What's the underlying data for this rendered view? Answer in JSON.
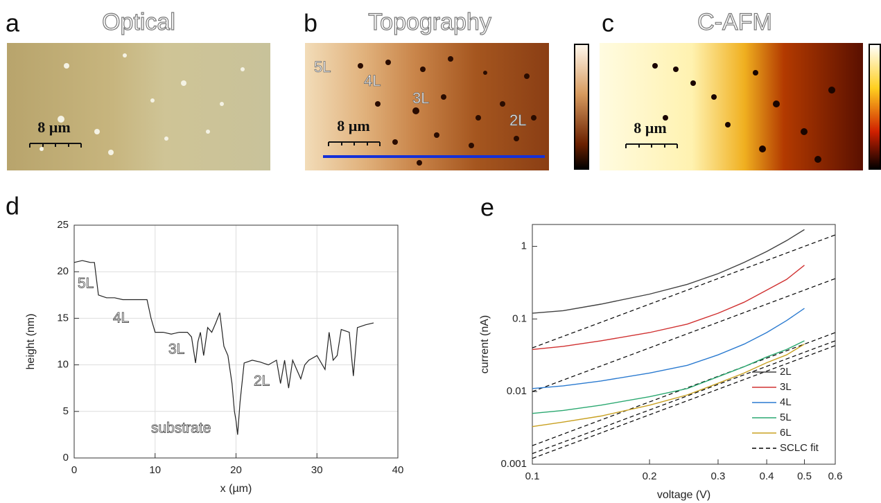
{
  "figure": {
    "panels": [
      {
        "label": "a",
        "title": "Optical",
        "scale_bar": "8 µm"
      },
      {
        "label": "b",
        "title": "Topography",
        "scale_bar": "8 µm",
        "layers": [
          "5L",
          "4L",
          "3L",
          "2L"
        ]
      },
      {
        "label": "c",
        "title": "C-AFM",
        "scale_bar": "8 µm"
      }
    ]
  },
  "chart_data": [
    {
      "type": "line",
      "panel_label": "d",
      "xlabel": "x (µm)",
      "ylabel": "height (nm)",
      "x": [
        0,
        1,
        2,
        2.5,
        3,
        4,
        5,
        6,
        7,
        8,
        9,
        9.5,
        10,
        11,
        12,
        13,
        14,
        14.5,
        15,
        15.3,
        15.6,
        16,
        16.5,
        17,
        17.5,
        18,
        18.5,
        19,
        19.5,
        19.8,
        20,
        20.2,
        20.5,
        21,
        22,
        23,
        24,
        25,
        25.5,
        26,
        26.5,
        27,
        28,
        28.5,
        29,
        30,
        31,
        31.5,
        32,
        32.5,
        33,
        34,
        34.5,
        35,
        36,
        37
      ],
      "values": [
        21,
        21.2,
        21,
        21,
        17.5,
        17.2,
        17.2,
        17,
        17,
        17,
        17,
        15,
        13.5,
        13.5,
        13.3,
        13.5,
        13.5,
        13,
        10.2,
        12.5,
        13.5,
        11,
        14,
        13.5,
        14.5,
        15.6,
        12,
        11,
        8,
        5,
        4,
        2.5,
        6,
        10.2,
        10.5,
        10.3,
        10,
        10.5,
        8,
        10.5,
        7.5,
        10.5,
        8.5,
        10,
        10.5,
        11,
        9.5,
        13.5,
        10.5,
        11,
        13.8,
        13.5,
        8.8,
        14,
        14.3,
        14.5
      ],
      "color": "#222222",
      "xlim": [
        0,
        40
      ],
      "ylim": [
        0,
        25
      ],
      "xticks": [
        0,
        10,
        20,
        30,
        40
      ],
      "yticks": [
        0,
        5,
        10,
        15,
        20,
        25
      ],
      "grid": true,
      "annotations": [
        "5L",
        "4L",
        "3L",
        "substrate",
        "2L"
      ]
    },
    {
      "type": "line",
      "log_x": true,
      "log_y": true,
      "panel_label": "e",
      "xlabel": "voltage (V)",
      "ylabel": "current (nA)",
      "x": [
        0.1,
        0.12,
        0.15,
        0.2,
        0.25,
        0.3,
        0.35,
        0.4,
        0.45,
        0.5
      ],
      "series": [
        {
          "name": "2L",
          "color": "#404040",
          "values": [
            0.12,
            0.13,
            0.16,
            0.22,
            0.3,
            0.42,
            0.6,
            0.85,
            1.2,
            1.7
          ]
        },
        {
          "name": "3L",
          "color": "#d03030",
          "values": [
            0.038,
            0.042,
            0.05,
            0.065,
            0.085,
            0.12,
            0.17,
            0.25,
            0.35,
            0.55
          ]
        },
        {
          "name": "4L",
          "color": "#2a7ad0",
          "values": [
            0.011,
            0.012,
            0.014,
            0.018,
            0.023,
            0.032,
            0.045,
            0.065,
            0.095,
            0.14
          ]
        },
        {
          "name": "5L",
          "color": "#2aa870",
          "values": [
            0.005,
            0.0055,
            0.0065,
            0.0085,
            0.011,
            0.016,
            0.022,
            0.03,
            0.038,
            0.05
          ]
        },
        {
          "name": "6L",
          "color": "#c8a020",
          "values": [
            0.0033,
            0.0038,
            0.0046,
            0.0065,
            0.009,
            0.013,
            0.018,
            0.025,
            0.032,
            0.045
          ]
        }
      ],
      "fit": {
        "name": "SCLC fit",
        "color": "#000000",
        "x": [
          0.1,
          0.6
        ],
        "lines": [
          [
            0.04,
            1.44
          ],
          [
            0.01,
            0.36
          ],
          [
            0.0018,
            0.065
          ],
          [
            0.0014,
            0.05
          ],
          [
            0.0012,
            0.043
          ]
        ]
      },
      "xlim": [
        0.1,
        0.6
      ],
      "ylim": [
        0.001,
        2
      ],
      "xticks": [
        0.1,
        0.2,
        0.3,
        0.4,
        0.5,
        0.6
      ],
      "yticks": [
        0.001,
        0.01,
        0.1,
        1
      ],
      "grid": false,
      "legend": "lower right"
    }
  ]
}
